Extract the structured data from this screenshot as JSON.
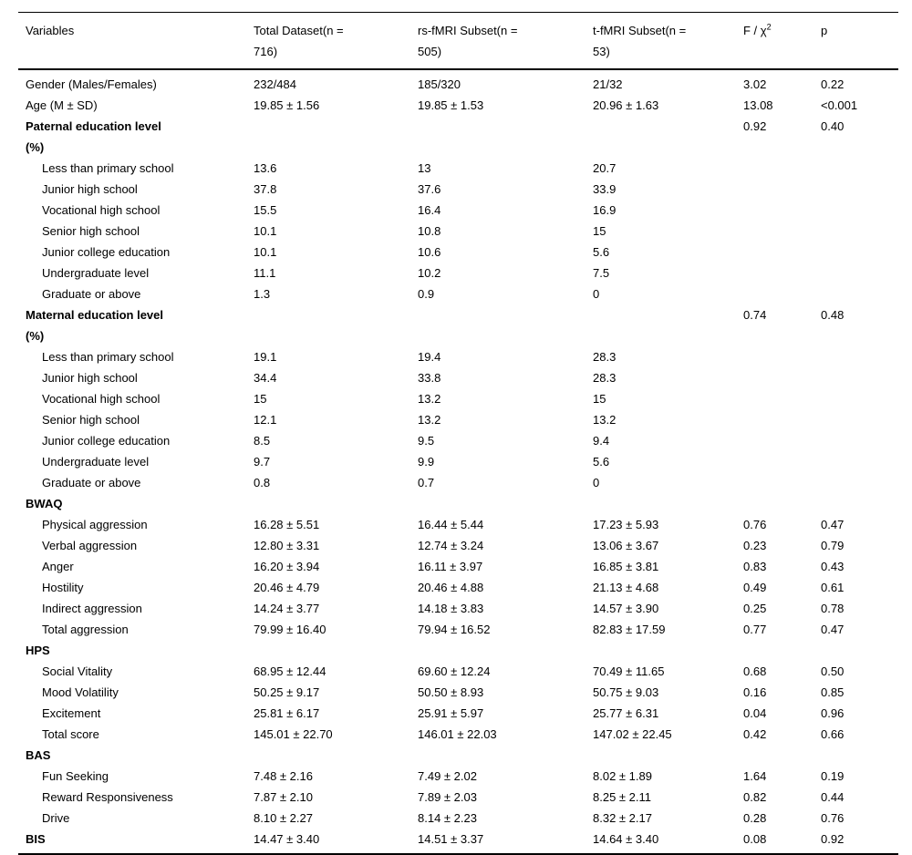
{
  "table": {
    "title": "participant characteristics comparison table",
    "columns": [
      {
        "label": "Variables"
      },
      {
        "label": "Total Dataset(n =\n716)"
      },
      {
        "label": "rs-fMRI Subset(n =\n505)"
      },
      {
        "label": "t-fMRI Subset(n =\n53)"
      },
      {
        "label": "F / χ",
        "sup": "2"
      },
      {
        "label": "p"
      }
    ],
    "rows": [
      {
        "label": "Gender (Males/Females)",
        "style": "plain",
        "values": [
          "232/484",
          "185/320",
          "21/32",
          "3.02",
          "0.22"
        ]
      },
      {
        "label": "Age (M ± SD)",
        "style": "plain",
        "values": [
          "19.85 ± 1.56",
          "19.85 ± 1.53",
          "20.96 ± 1.63",
          "13.08",
          "<0.001"
        ]
      },
      {
        "label": "Paternal education level\n(%)",
        "style": "section",
        "values": [
          "",
          "",
          "",
          "0.92",
          "0.40"
        ]
      },
      {
        "label": "Less than primary school",
        "style": "indent",
        "values": [
          "13.6",
          "13",
          "20.7",
          "",
          ""
        ]
      },
      {
        "label": "Junior high school",
        "style": "indent",
        "values": [
          "37.8",
          "37.6",
          "33.9",
          "",
          ""
        ]
      },
      {
        "label": "Vocational high school",
        "style": "indent",
        "values": [
          "15.5",
          "16.4",
          "16.9",
          "",
          ""
        ]
      },
      {
        "label": "Senior high school",
        "style": "indent",
        "values": [
          "10.1",
          "10.8",
          "15",
          "",
          ""
        ]
      },
      {
        "label": "Junior college education",
        "style": "indent",
        "values": [
          "10.1",
          "10.6",
          "5.6",
          "",
          ""
        ]
      },
      {
        "label": "Undergraduate level",
        "style": "indent",
        "values": [
          "11.1",
          "10.2",
          "7.5",
          "",
          ""
        ]
      },
      {
        "label": "Graduate or above",
        "style": "indent",
        "values": [
          "1.3",
          "0.9",
          "0",
          "",
          ""
        ]
      },
      {
        "label": "Maternal education level\n(%)",
        "style": "section",
        "values": [
          "",
          "",
          "",
          "0.74",
          "0.48"
        ]
      },
      {
        "label": "Less than primary school",
        "style": "indent",
        "values": [
          "19.1",
          "19.4",
          "28.3",
          "",
          ""
        ]
      },
      {
        "label": "Junior high school",
        "style": "indent",
        "values": [
          "34.4",
          "33.8",
          "28.3",
          "",
          ""
        ]
      },
      {
        "label": "Vocational high school",
        "style": "indent",
        "values": [
          "15",
          "13.2",
          "15",
          "",
          ""
        ]
      },
      {
        "label": "Senior high school",
        "style": "indent",
        "values": [
          "12.1",
          "13.2",
          "13.2",
          "",
          ""
        ]
      },
      {
        "label": "Junior college education",
        "style": "indent",
        "values": [
          "8.5",
          "9.5",
          "9.4",
          "",
          ""
        ]
      },
      {
        "label": "Undergraduate level",
        "style": "indent",
        "values": [
          "9.7",
          "9.9",
          "5.6",
          "",
          ""
        ]
      },
      {
        "label": "Graduate or above",
        "style": "indent",
        "values": [
          "0.8",
          "0.7",
          "0",
          "",
          ""
        ]
      },
      {
        "label": "BWAQ",
        "style": "section",
        "values": [
          "",
          "",
          "",
          "",
          ""
        ]
      },
      {
        "label": "Physical aggression",
        "style": "indent",
        "values": [
          "16.28 ± 5.51",
          "16.44 ± 5.44",
          "17.23 ± 5.93",
          "0.76",
          "0.47"
        ]
      },
      {
        "label": "Verbal aggression",
        "style": "indent",
        "values": [
          "12.80 ± 3.31",
          "12.74 ± 3.24",
          "13.06 ± 3.67",
          "0.23",
          "0.79"
        ]
      },
      {
        "label": "Anger",
        "style": "indent",
        "values": [
          "16.20 ± 3.94",
          "16.11 ± 3.97",
          "16.85 ± 3.81",
          "0.83",
          "0.43"
        ]
      },
      {
        "label": "Hostility",
        "style": "indent",
        "values": [
          "20.46 ± 4.79",
          "20.46 ± 4.88",
          "21.13 ± 4.68",
          "0.49",
          "0.61"
        ]
      },
      {
        "label": "Indirect aggression",
        "style": "indent",
        "values": [
          "14.24 ± 3.77",
          "14.18 ± 3.83",
          "14.57 ± 3.90",
          "0.25",
          "0.78"
        ]
      },
      {
        "label": "Total aggression",
        "style": "indent",
        "values": [
          "79.99 ± 16.40",
          "79.94 ± 16.52",
          "82.83 ± 17.59",
          "0.77",
          "0.47"
        ]
      },
      {
        "label": "HPS",
        "style": "section",
        "values": [
          "",
          "",
          "",
          "",
          ""
        ]
      },
      {
        "label": "Social Vitality",
        "style": "indent",
        "values": [
          "68.95 ± 12.44",
          "69.60 ± 12.24",
          "70.49 ± 11.65",
          "0.68",
          "0.50"
        ]
      },
      {
        "label": "Mood Volatility",
        "style": "indent",
        "values": [
          "50.25 ± 9.17",
          "50.50 ± 8.93",
          "50.75 ± 9.03",
          "0.16",
          "0.85"
        ]
      },
      {
        "label": "Excitement",
        "style": "indent",
        "values": [
          "25.81 ± 6.17",
          "25.91 ± 5.97",
          "25.77 ± 6.31",
          "0.04",
          "0.96"
        ]
      },
      {
        "label": "Total score",
        "style": "indent",
        "values": [
          "145.01 ± 22.70",
          "146.01 ± 22.03",
          "147.02 ± 22.45",
          "0.42",
          "0.66"
        ]
      },
      {
        "label": "BAS",
        "style": "section",
        "values": [
          "",
          "",
          "",
          "",
          ""
        ]
      },
      {
        "label": "Fun Seeking",
        "style": "indent",
        "values": [
          "7.48 ± 2.16",
          "7.49 ± 2.02",
          "8.02 ± 1.89",
          "1.64",
          "0.19"
        ]
      },
      {
        "label": "Reward Responsiveness",
        "style": "indent",
        "values": [
          "7.87 ± 2.10",
          "7.89 ± 2.03",
          "8.25 ± 2.11",
          "0.82",
          "0.44"
        ]
      },
      {
        "label": "Drive",
        "style": "indent",
        "values": [
          "8.10 ± 2.27",
          "8.14 ± 2.23",
          "8.32 ± 2.17",
          "0.28",
          "0.76"
        ]
      },
      {
        "label": "BIS",
        "style": "section",
        "values": [
          "14.47 ± 3.40",
          "14.51 ± 3.37",
          "14.64 ± 3.40",
          "0.08",
          "0.92"
        ]
      }
    ]
  }
}
